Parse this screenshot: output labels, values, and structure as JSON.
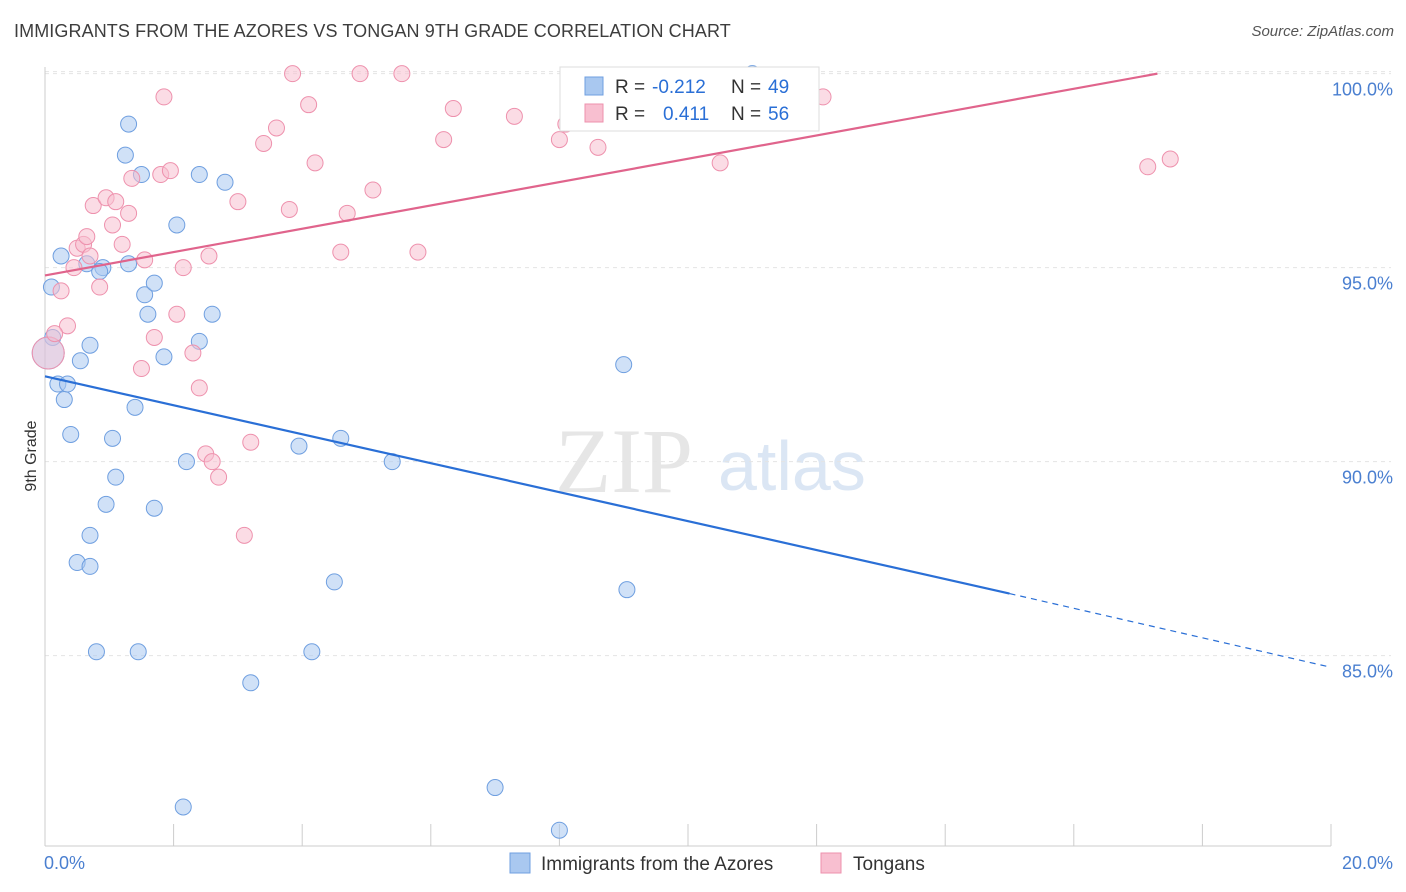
{
  "header": {
    "title": "IMMIGRANTS FROM THE AZORES VS TONGAN 9TH GRADE CORRELATION CHART",
    "source": "Source: ZipAtlas.com"
  },
  "watermark": {
    "zip": "ZIP",
    "atlas": "atlas"
  },
  "chart_data": {
    "type": "scatter",
    "title": "IMMIGRANTS FROM THE AZORES VS TONGAN 9TH GRADE CORRELATION CHART",
    "xlabel": "",
    "ylabel": "9th Grade",
    "xlim": [
      0,
      20
    ],
    "ylim": [
      80.3,
      100.3
    ],
    "x_tick_labels": [
      "0.0%",
      "20.0%"
    ],
    "y_ticks": [
      85,
      90,
      95,
      100
    ],
    "y_tick_labels": [
      "85.0%",
      "90.0%",
      "95.0%",
      "100.0%"
    ],
    "grid": true,
    "legend_position": "bottom-center",
    "stats": [
      {
        "r_label": "R =",
        "r": "-0.212",
        "n_label": "N =",
        "n": "49"
      },
      {
        "r_label": "R =",
        "r": "0.411",
        "n_label": "N =",
        "n": "56"
      }
    ],
    "series": [
      {
        "name": "Immigrants from the Azores",
        "color": "#a9c8f0",
        "stroke": "#6f9fe0",
        "line_color": "#2a6fd6",
        "trend": {
          "x0": 0,
          "y0": 92.2,
          "x1": 15,
          "y1": 86.6,
          "dash_to_x": 20,
          "dash_to_y": 84.7
        },
        "points": [
          [
            0.1,
            94.5
          ],
          [
            0.25,
            95.3
          ],
          [
            0.12,
            93.2
          ],
          [
            0.2,
            92.0
          ],
          [
            0.3,
            91.6
          ],
          [
            0.4,
            90.7
          ],
          [
            0.35,
            92.0
          ],
          [
            0.55,
            92.6
          ],
          [
            0.7,
            93.0
          ],
          [
            0.65,
            95.1
          ],
          [
            0.9,
            95.0
          ],
          [
            0.85,
            94.9
          ],
          [
            1.3,
            98.7
          ],
          [
            1.25,
            97.9
          ],
          [
            1.5,
            97.4
          ],
          [
            2.05,
            96.1
          ],
          [
            2.4,
            97.4
          ],
          [
            2.8,
            97.2
          ],
          [
            1.3,
            95.1
          ],
          [
            1.55,
            94.3
          ],
          [
            1.7,
            94.6
          ],
          [
            1.6,
            93.8
          ],
          [
            1.85,
            92.7
          ],
          [
            2.4,
            93.1
          ],
          [
            2.6,
            93.8
          ],
          [
            1.4,
            91.4
          ],
          [
            1.05,
            90.6
          ],
          [
            1.1,
            89.6
          ],
          [
            0.95,
            88.9
          ],
          [
            1.7,
            88.8
          ],
          [
            0.7,
            88.1
          ],
          [
            0.5,
            87.4
          ],
          [
            0.7,
            87.3
          ],
          [
            0.8,
            85.1
          ],
          [
            1.45,
            85.1
          ],
          [
            2.2,
            90.0
          ],
          [
            3.95,
            90.4
          ],
          [
            4.6,
            90.6
          ],
          [
            5.4,
            90.0
          ],
          [
            9.0,
            92.5
          ],
          [
            9.05,
            86.7
          ],
          [
            4.5,
            86.9
          ],
          [
            4.15,
            85.1
          ],
          [
            3.2,
            84.3
          ],
          [
            2.15,
            81.1
          ],
          [
            7.0,
            81.6
          ],
          [
            8.0,
            80.5
          ],
          [
            11.0,
            100.0
          ],
          [
            0.05,
            92.8
          ]
        ]
      },
      {
        "name": "Tongans",
        "color": "#f8bfd0",
        "stroke": "#ee91ad",
        "line_color": "#e0648c",
        "trend": {
          "x0": 0,
          "y0": 94.8,
          "x1": 17.3,
          "y1": 100.0
        },
        "points": [
          [
            0.05,
            92.8
          ],
          [
            0.25,
            94.4
          ],
          [
            0.35,
            93.5
          ],
          [
            0.45,
            95.0
          ],
          [
            0.5,
            95.5
          ],
          [
            0.6,
            95.6
          ],
          [
            0.7,
            95.3
          ],
          [
            0.85,
            94.5
          ],
          [
            0.75,
            96.6
          ],
          [
            0.95,
            96.8
          ],
          [
            1.05,
            96.1
          ],
          [
            1.1,
            96.7
          ],
          [
            1.2,
            95.6
          ],
          [
            1.3,
            96.4
          ],
          [
            1.35,
            97.3
          ],
          [
            1.5,
            92.4
          ],
          [
            1.55,
            95.2
          ],
          [
            1.7,
            93.2
          ],
          [
            1.8,
            97.4
          ],
          [
            1.85,
            99.4
          ],
          [
            1.95,
            97.5
          ],
          [
            2.05,
            93.8
          ],
          [
            2.15,
            95.0
          ],
          [
            2.3,
            92.8
          ],
          [
            2.4,
            91.9
          ],
          [
            2.55,
            95.3
          ],
          [
            2.5,
            90.2
          ],
          [
            2.6,
            90.0
          ],
          [
            2.7,
            89.6
          ],
          [
            3.0,
            96.7
          ],
          [
            3.1,
            88.1
          ],
          [
            3.2,
            90.5
          ],
          [
            3.4,
            98.2
          ],
          [
            3.6,
            98.6
          ],
          [
            3.8,
            96.5
          ],
          [
            3.85,
            100.0
          ],
          [
            4.1,
            99.2
          ],
          [
            4.2,
            97.7
          ],
          [
            4.6,
            95.4
          ],
          [
            4.7,
            96.4
          ],
          [
            4.9,
            100.0
          ],
          [
            5.1,
            97.0
          ],
          [
            5.55,
            100.0
          ],
          [
            5.8,
            95.4
          ],
          [
            6.2,
            98.3
          ],
          [
            6.35,
            99.1
          ],
          [
            7.3,
            98.9
          ],
          [
            8.0,
            98.3
          ],
          [
            8.1,
            98.7
          ],
          [
            8.6,
            98.1
          ],
          [
            10.5,
            97.7
          ],
          [
            12.1,
            99.4
          ],
          [
            17.15,
            97.6
          ],
          [
            17.5,
            97.8
          ],
          [
            0.65,
            95.8
          ],
          [
            0.15,
            93.3
          ]
        ]
      }
    ]
  }
}
